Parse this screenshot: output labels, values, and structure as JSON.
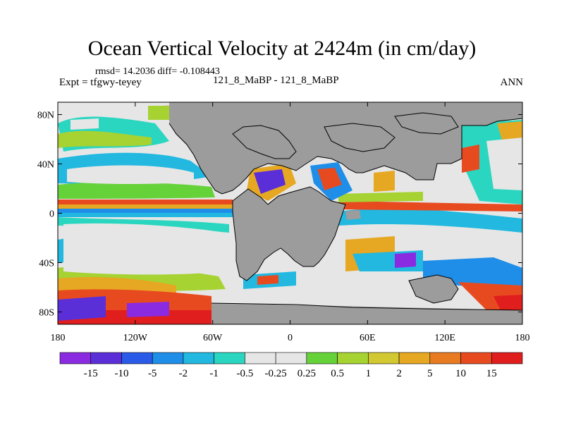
{
  "header": {
    "title": "Ocean Vertical Velocity at 2424m (in cm/day)",
    "stats": "rmsd= 14.2036 diff= -0.108443",
    "experiment": "Expt = tfgwy-teyey",
    "case": "121_8_MaBP - 121_8_MaBP",
    "season": "ANN"
  },
  "axes": {
    "lat_ticks": [
      {
        "label": "80N",
        "lat": 80
      },
      {
        "label": "40N",
        "lat": 40
      },
      {
        "label": "0",
        "lat": 0
      },
      {
        "label": "40S",
        "lat": -40
      },
      {
        "label": "80S",
        "lat": -80
      }
    ],
    "lon_ticks": [
      {
        "label": "180",
        "lon": -180
      },
      {
        "label": "120W",
        "lon": -120
      },
      {
        "label": "60W",
        "lon": -60
      },
      {
        "label": "0",
        "lon": 0
      },
      {
        "label": "60E",
        "lon": 60
      },
      {
        "label": "120E",
        "lon": 120
      },
      {
        "label": "180",
        "lon": 180
      }
    ],
    "lon_range": [
      -180,
      180
    ],
    "lat_range": [
      -90,
      90
    ]
  },
  "colorbar": {
    "colors": [
      "#8a2be2",
      "#5a2fd8",
      "#2a5ae8",
      "#1f8ee8",
      "#22b8e0",
      "#2ad6c0",
      "#e6e6e6",
      "#e6e6e6",
      "#66d23a",
      "#a6d232",
      "#d2c832",
      "#e6a822",
      "#e87a22",
      "#e84a20",
      "#e01e1e"
    ],
    "labels": [
      "-15",
      "-10",
      "-5",
      "-2",
      "-1",
      "-0.5",
      "-0.25",
      "0.25",
      "0.5",
      "1",
      "2",
      "5",
      "10",
      "15"
    ]
  },
  "colors": {
    "land": "#9c9c9c",
    "coast": "#000000"
  }
}
